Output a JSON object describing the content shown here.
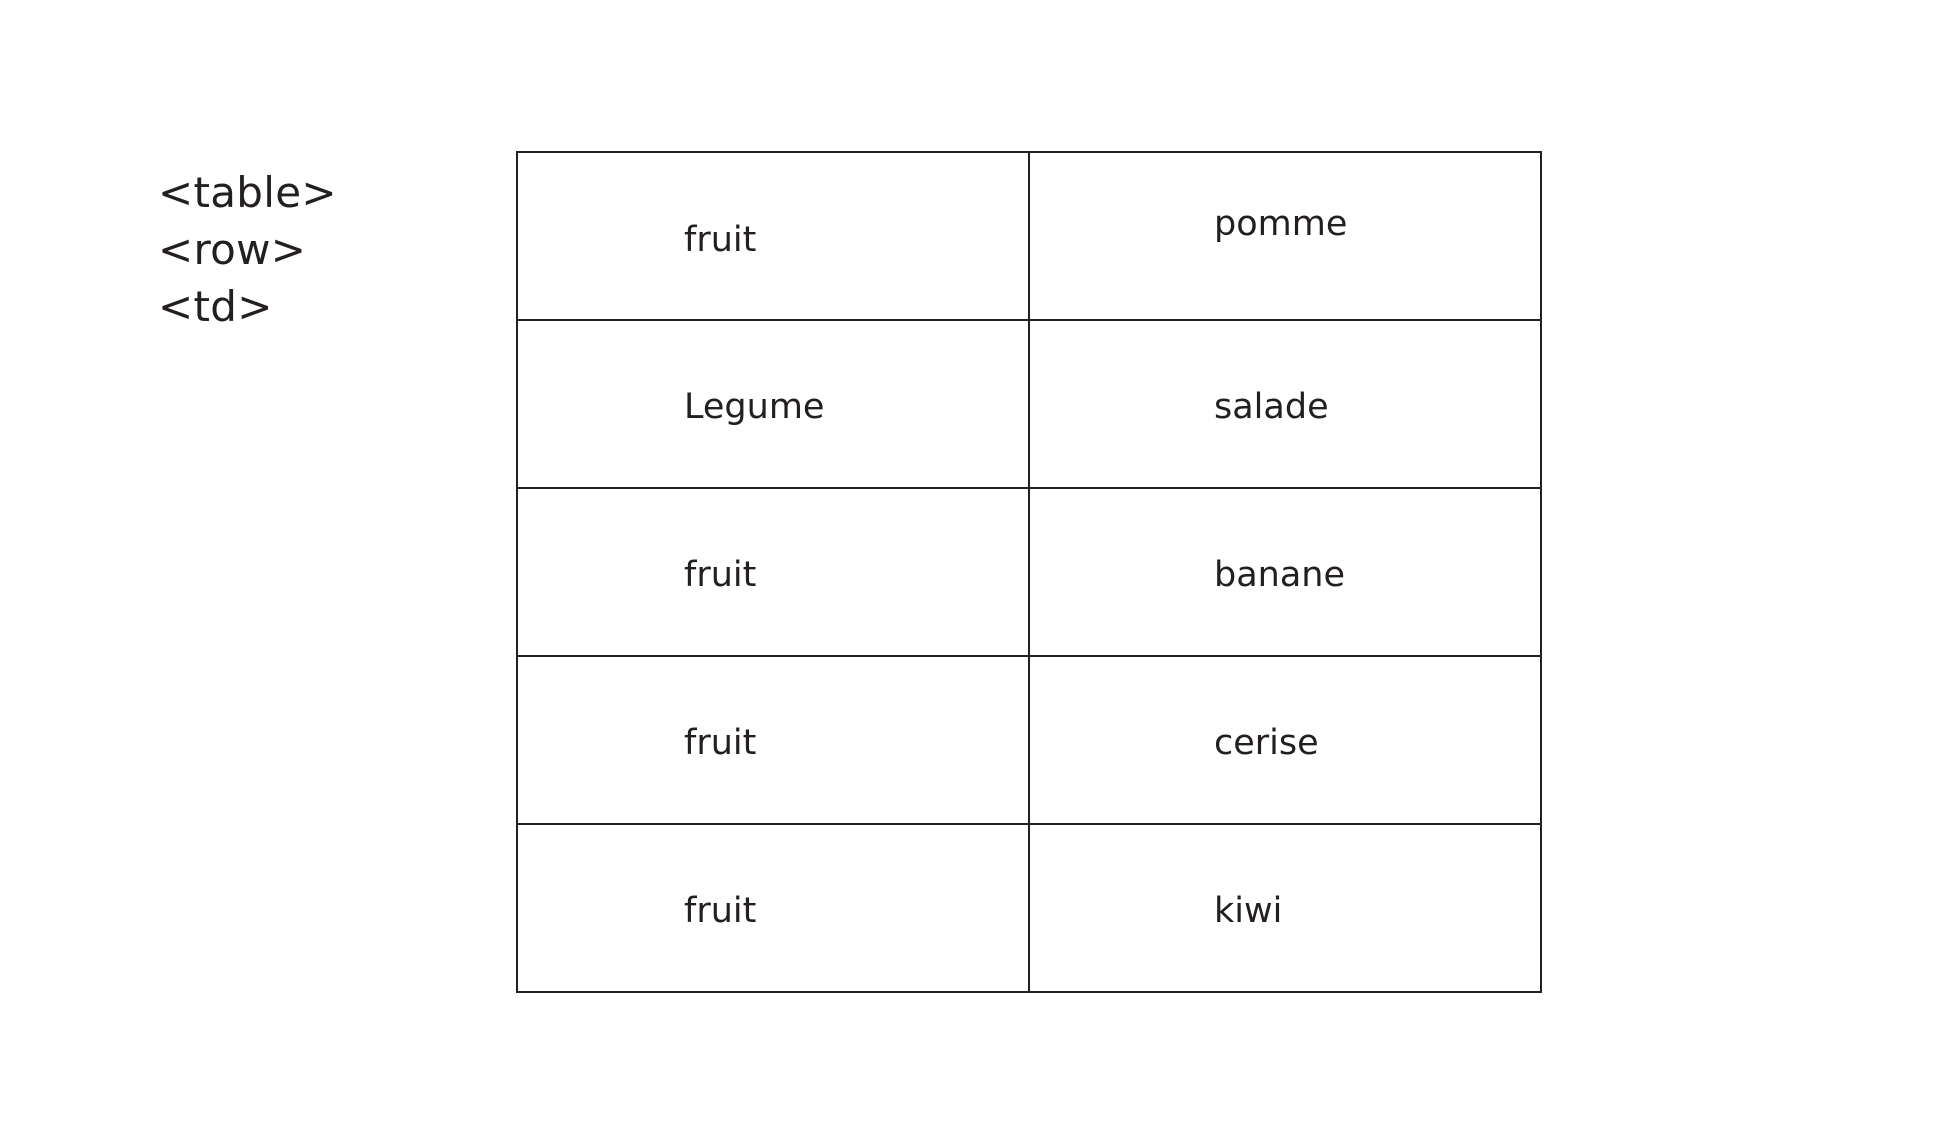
{
  "tags": [
    "<table>",
    "<row>",
    "<td>"
  ],
  "table": {
    "rows": [
      [
        "fruit",
        "pomme"
      ],
      [
        "Legume",
        "salade"
      ],
      [
        "fruit",
        "banane"
      ],
      [
        "fruit",
        "cerise"
      ],
      [
        "fruit",
        "kiwi"
      ]
    ]
  },
  "colors": {
    "line": "#231f20",
    "text": "#231f20",
    "background": "#ffffff"
  }
}
